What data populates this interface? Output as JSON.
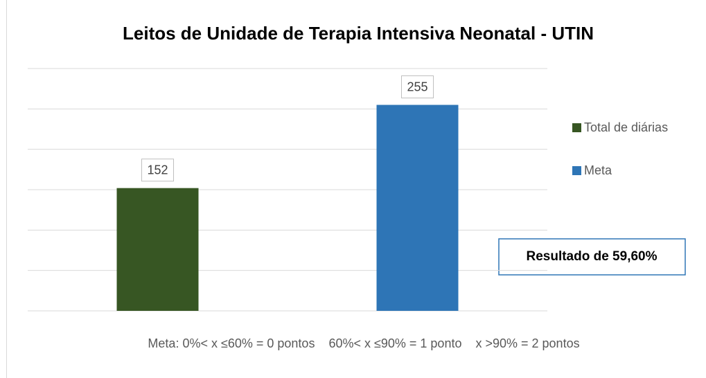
{
  "chart_data": {
    "type": "bar",
    "title": "Leitos de Unidade de Terapia Intensiva Neonatal - UTIN",
    "categories": [
      null
    ],
    "series": [
      {
        "name": "Total de diárias",
        "color": "#375623",
        "values": [
          152
        ]
      },
      {
        "name": "Meta",
        "color": "#2e75b6",
        "values": [
          255
        ]
      }
    ],
    "ylim": [
      0,
      300
    ],
    "yticks": [
      0,
      50,
      100,
      150,
      200,
      250,
      300
    ],
    "grid": true,
    "legend": "right",
    "annotation": "Resultado de 59,60%",
    "footnote": "Meta: 0%< x ≤60% = 0 pontos    60%< x ≤90% = 1 ponto    x >90% = 2 pontos"
  }
}
